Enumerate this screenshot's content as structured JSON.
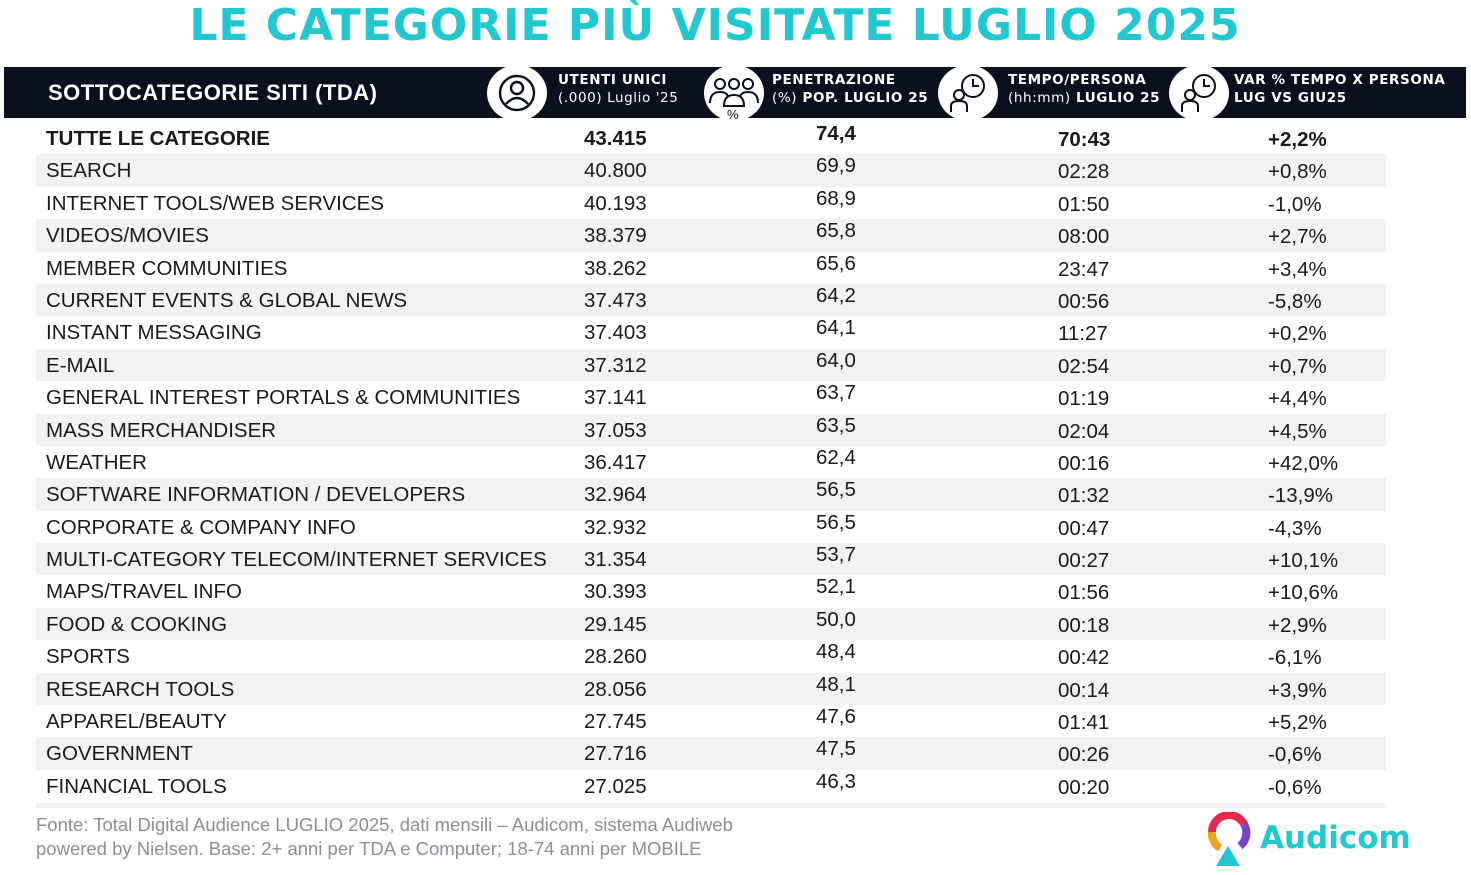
{
  "title": "LE CATEGORIE PIÙ VISITATE LUGLIO 2025",
  "header": {
    "col1": "SOTTOCATEGORIE SITI  (TDA)",
    "col2_line1": "UTENTI UNICI",
    "col2_line2": "(.000) Luglio '25",
    "col3_line1": "PENETRAZIONE",
    "col3_line2a": "(%)",
    "col3_line2b": " POP. LUGLIO 25",
    "col3_icon_label": "%",
    "col4_line1": "TEMPO/PERSONA",
    "col4_line2a": "(hh:mm)",
    "col4_line2b": " LUGLIO 25",
    "col5_line1": "VAR % TEMPO X PERSONA",
    "col5_line2": "LUG VS GIU25",
    "icons": [
      "user-icon",
      "group-icon",
      "person-clock-icon",
      "person-clock-icon"
    ]
  },
  "rows": [
    {
      "name": "TUTTE LE CATEGORIE",
      "users": "43.415",
      "pen": "74,4",
      "time": "70:43",
      "var": "+2,2%"
    },
    {
      "name": "SEARCH",
      "users": "40.800",
      "pen": "69,9",
      "time": "02:28",
      "var": "+0,8%"
    },
    {
      "name": "INTERNET TOOLS/WEB SERVICES",
      "users": "40.193",
      "pen": "68,9",
      "time": "01:50",
      "var": "-1,0%"
    },
    {
      "name": "VIDEOS/MOVIES",
      "users": "38.379",
      "pen": "65,8",
      "time": "08:00",
      "var": "+2,7%"
    },
    {
      "name": "MEMBER COMMUNITIES",
      "users": "38.262",
      "pen": "65,6",
      "time": "23:47",
      "var": "+3,4%"
    },
    {
      "name": "CURRENT EVENTS & GLOBAL NEWS",
      "users": "37.473",
      "pen": "64,2",
      "time": "00:56",
      "var": "-5,8%"
    },
    {
      "name": "INSTANT MESSAGING",
      "users": "37.403",
      "pen": "64,1",
      "time": "11:27",
      "var": "+0,2%"
    },
    {
      "name": "E-MAIL",
      "users": "37.312",
      "pen": "64,0",
      "time": "02:54",
      "var": "+0,7%"
    },
    {
      "name": "GENERAL INTEREST PORTALS & COMMUNITIES",
      "users": "37.141",
      "pen": "63,7",
      "time": "01:19",
      "var": "+4,4%"
    },
    {
      "name": "MASS MERCHANDISER",
      "users": "37.053",
      "pen": "63,5",
      "time": "02:04",
      "var": "+4,5%"
    },
    {
      "name": "WEATHER",
      "users": "36.417",
      "pen": "62,4",
      "time": "00:16",
      "var": "+42,0%"
    },
    {
      "name": "SOFTWARE INFORMATION / DEVELOPERS",
      "users": "32.964",
      "pen": "56,5",
      "time": "01:32",
      "var": "-13,9%"
    },
    {
      "name": "CORPORATE & COMPANY INFO",
      "users": "32.932",
      "pen": "56,5",
      "time": "00:47",
      "var": "-4,3%"
    },
    {
      "name": "MULTI-CATEGORY TELECOM/INTERNET SERVICES",
      "users": "31.354",
      "pen": "53,7",
      "time": "00:27",
      "var": "+10,1%"
    },
    {
      "name": "MAPS/TRAVEL INFO",
      "users": "30.393",
      "pen": "52,1",
      "time": "01:56",
      "var": "+10,6%"
    },
    {
      "name": "FOOD & COOKING",
      "users": "29.145",
      "pen": "50,0",
      "time": "00:18",
      "var": "+2,9%"
    },
    {
      "name": "SPORTS",
      "users": "28.260",
      "pen": "48,4",
      "time": "00:42",
      "var": "-6,1%"
    },
    {
      "name": "RESEARCH TOOLS",
      "users": "28.056",
      "pen": "48,1",
      "time": "00:14",
      "var": "+3,9%"
    },
    {
      "name": "APPAREL/BEAUTY",
      "users": "27.745",
      "pen": "47,6",
      "time": "01:41",
      "var": "+5,2%"
    },
    {
      "name": "GOVERNMENT",
      "users": "27.716",
      "pen": "47,5",
      "time": "00:26",
      "var": "-0,6%"
    },
    {
      "name": "FINANCIAL TOOLS",
      "users": "27.025",
      "pen": "46,3",
      "time": "00:20",
      "var": "-0,6%"
    }
  ],
  "footer": {
    "line1": "Fonte: Total Digital Audience LUGLIO 2025, dati mensili – Audicom, sistema Audiweb",
    "line2": "powered by Nielsen. Base: 2+ anni per TDA e Computer; 18-74 anni per MOBILE"
  },
  "logo": {
    "text": "Audicom",
    "icon": "audicom-logo-icon"
  },
  "colors": {
    "accent": "#22c8d0",
    "header_bg": "#0b1020",
    "row_shade": "#f2f2f2",
    "footer_text": "#8a8f96"
  }
}
